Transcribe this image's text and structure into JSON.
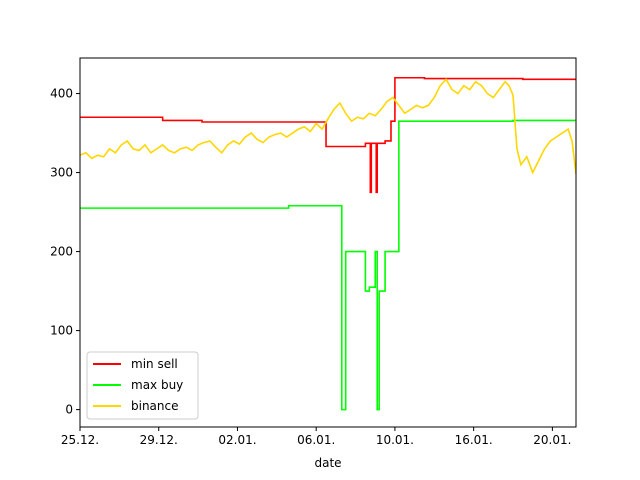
{
  "chart_data": {
    "type": "line",
    "xlabel": "date",
    "ylabel": "",
    "x_ticks": [
      "25.12.",
      "29.12.",
      "02.01.",
      "06.01.",
      "10.01.",
      "16.01.",
      "20.01."
    ],
    "x_tick_values": [
      0,
      4,
      8,
      12,
      16,
      20,
      24
    ],
    "xlim": [
      0,
      25.2
    ],
    "y_ticks": [
      "0",
      "100",
      "200",
      "300",
      "400"
    ],
    "y_tick_values": [
      0,
      100,
      200,
      300,
      400
    ],
    "ylim": [
      -22,
      445
    ],
    "grid": false,
    "legend_position": "lower left",
    "series": [
      {
        "name": "min sell",
        "color": "#ff0000",
        "step": true,
        "x": [
          0,
          4.2,
          6.2,
          11.0,
          12.0,
          12.5,
          13.9,
          14.5,
          14.7,
          14.75,
          14.8,
          14.85,
          15.0,
          15.05,
          15.1,
          15.15,
          15.25,
          15.4,
          15.5,
          15.8,
          16.0,
          17.5,
          20.0,
          22.5,
          25.2
        ],
        "values": [
          370,
          366,
          364,
          364,
          364,
          333,
          333,
          337,
          337,
          275,
          337,
          337,
          337,
          275,
          337,
          337,
          337,
          337,
          340,
          365,
          420,
          419,
          419,
          418,
          418
        ]
      },
      {
        "name": "max buy",
        "color": "#00ff00",
        "step": true,
        "x": [
          0,
          10.5,
          10.6,
          13.0,
          13.3,
          13.5,
          14.5,
          14.7,
          14.9,
          15.0,
          15.1,
          15.2,
          15.45,
          15.5,
          16.0,
          16.2,
          19.0,
          22.0,
          25.2
        ],
        "values": [
          255,
          255,
          258,
          258,
          0,
          200,
          150,
          155,
          155,
          200,
          0,
          150,
          150,
          200,
          200,
          365,
          365,
          366,
          366
        ]
      },
      {
        "name": "binance",
        "color": "#ffd700",
        "step": false,
        "x": [
          0,
          0.3,
          0.6,
          0.9,
          1.2,
          1.5,
          1.8,
          2.1,
          2.4,
          2.7,
          3.0,
          3.3,
          3.6,
          3.9,
          4.2,
          4.5,
          4.8,
          5.1,
          5.4,
          5.7,
          6.0,
          6.3,
          6.6,
          6.9,
          7.2,
          7.5,
          7.8,
          8.1,
          8.4,
          8.7,
          9.0,
          9.3,
          9.6,
          9.9,
          10.2,
          10.5,
          10.8,
          11.1,
          11.4,
          11.7,
          12.0,
          12.3,
          12.6,
          12.9,
          13.2,
          13.5,
          13.8,
          14.1,
          14.4,
          14.7,
          15.0,
          15.3,
          15.6,
          15.9,
          16.2,
          16.5,
          16.8,
          17.1,
          17.4,
          17.7,
          18.0,
          18.3,
          18.6,
          18.9,
          19.2,
          19.5,
          19.8,
          20.1,
          20.4,
          20.7,
          21.0,
          21.3,
          21.6,
          21.8,
          22.0,
          22.2,
          22.4,
          22.7,
          23.0,
          23.3,
          23.6,
          23.9,
          24.2,
          24.5,
          24.8,
          25.0,
          25.2
        ],
        "values": [
          322,
          325,
          318,
          322,
          320,
          330,
          325,
          335,
          340,
          330,
          328,
          335,
          325,
          330,
          335,
          328,
          325,
          330,
          332,
          328,
          335,
          338,
          340,
          332,
          325,
          335,
          340,
          336,
          345,
          350,
          342,
          338,
          345,
          348,
          350,
          345,
          350,
          355,
          358,
          352,
          362,
          355,
          368,
          380,
          388,
          375,
          365,
          370,
          368,
          375,
          372,
          380,
          390,
          395,
          385,
          375,
          380,
          385,
          382,
          385,
          395,
          410,
          418,
          405,
          400,
          410,
          405,
          415,
          410,
          400,
          395,
          405,
          415,
          410,
          398,
          330,
          310,
          320,
          300,
          315,
          330,
          340,
          345,
          350,
          355,
          340,
          298
        ]
      }
    ]
  }
}
